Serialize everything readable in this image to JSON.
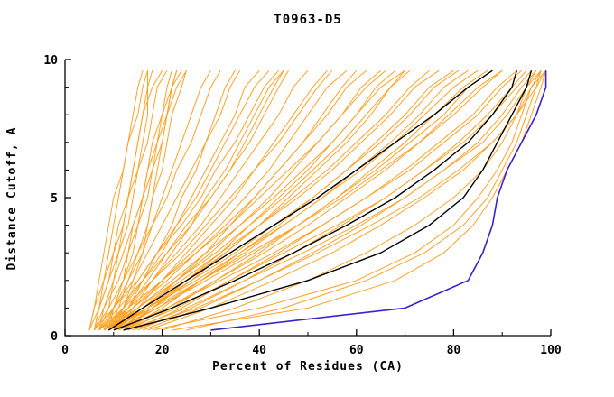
{
  "chart_data": {
    "type": "line",
    "title": "T0963-D5",
    "xlabel": "Percent of Residues (CA)",
    "ylabel": "Distance Cutoff, A",
    "xlim": [
      0,
      100
    ],
    "ylim": [
      0,
      10
    ],
    "x_ticks_major": [
      0,
      20,
      40,
      60,
      80,
      100
    ],
    "x_tick_minor_step": 10,
    "y_ticks_major": [
      0,
      5,
      10
    ],
    "y_tick_minor_step": 1,
    "grid": false,
    "legend": "none",
    "colors": {
      "ensemble": "#ffa226",
      "reference": "#000000",
      "highlight": "#4020cc",
      "axis": "#000000",
      "background": "#ffffff"
    },
    "cutoffs": [
      0.2,
      1,
      2,
      3,
      4,
      5,
      6,
      7,
      8,
      9,
      9.6
    ],
    "series_groups": [
      {
        "name": "ensemble-model",
        "color": "ensemble",
        "stroke_width": 1,
        "curves_x_percent": [
          [
            6,
            7,
            8,
            9,
            10,
            11,
            12,
            13,
            14,
            15,
            16
          ],
          [
            7,
            9,
            10,
            11,
            13,
            14,
            15,
            16,
            17,
            17,
            18
          ],
          [
            5,
            7,
            9,
            11,
            12,
            13,
            14,
            15,
            16,
            18,
            20
          ],
          [
            8,
            10,
            12,
            13,
            14,
            16,
            17,
            18,
            20,
            21,
            22
          ],
          [
            6,
            8,
            11,
            13,
            15,
            16,
            18,
            19,
            20,
            22,
            24
          ],
          [
            9,
            11,
            13,
            15,
            17,
            18,
            20,
            21,
            22,
            24,
            25
          ],
          [
            7,
            8,
            10,
            12,
            14,
            16,
            17,
            19,
            21,
            22,
            23
          ],
          [
            5,
            6,
            8,
            10,
            11,
            13,
            15,
            17,
            18,
            19,
            21
          ],
          [
            8,
            10,
            13,
            16,
            18,
            20,
            22,
            24,
            26,
            28,
            30
          ],
          [
            6,
            9,
            12,
            15,
            18,
            21,
            23,
            26,
            28,
            30,
            32
          ],
          [
            10,
            13,
            16,
            19,
            22,
            24,
            27,
            29,
            31,
            33,
            35
          ],
          [
            7,
            10,
            14,
            17,
            20,
            23,
            26,
            29,
            32,
            34,
            36
          ],
          [
            9,
            12,
            16,
            20,
            23,
            26,
            29,
            32,
            35,
            37,
            40
          ],
          [
            8,
            12,
            15,
            19,
            23,
            27,
            30,
            33,
            36,
            39,
            42
          ],
          [
            11,
            14,
            18,
            22,
            26,
            29,
            33,
            36,
            39,
            42,
            45
          ],
          [
            6,
            10,
            15,
            19,
            24,
            28,
            31,
            35,
            38,
            41,
            44
          ],
          [
            9,
            13,
            17,
            21,
            25,
            30,
            34,
            37,
            40,
            43,
            45
          ],
          [
            7,
            11,
            16,
            21,
            26,
            30,
            34,
            38,
            41,
            44,
            46
          ],
          [
            8,
            13,
            18,
            23,
            28,
            32,
            36,
            40,
            44,
            47,
            50
          ],
          [
            10,
            15,
            20,
            25,
            30,
            35,
            39,
            43,
            47,
            51,
            54
          ],
          [
            7,
            12,
            18,
            24,
            29,
            34,
            39,
            44,
            48,
            52,
            55
          ],
          [
            9,
            14,
            20,
            26,
            32,
            37,
            42,
            46,
            50,
            54,
            58
          ],
          [
            11,
            17,
            23,
            29,
            34,
            39,
            44,
            49,
            53,
            57,
            60
          ],
          [
            8,
            14,
            21,
            27,
            33,
            39,
            44,
            49,
            54,
            58,
            62
          ],
          [
            10,
            16,
            23,
            30,
            36,
            42,
            47,
            52,
            57,
            61,
            65
          ],
          [
            7,
            13,
            20,
            27,
            34,
            40,
            46,
            52,
            57,
            62,
            66
          ],
          [
            12,
            18,
            25,
            32,
            38,
            44,
            50,
            55,
            60,
            64,
            68
          ],
          [
            9,
            15,
            22,
            29,
            36,
            43,
            49,
            55,
            60,
            65,
            70
          ],
          [
            11,
            18,
            26,
            33,
            40,
            46,
            52,
            58,
            63,
            67,
            70
          ],
          [
            8,
            15,
            23,
            31,
            38,
            45,
            51,
            57,
            62,
            67,
            71
          ],
          [
            10,
            17,
            25,
            33,
            40,
            47,
            54,
            60,
            66,
            71,
            75
          ],
          [
            8,
            16,
            24,
            32,
            40,
            48,
            55,
            61,
            67,
            72,
            77
          ],
          [
            12,
            20,
            28,
            36,
            44,
            51,
            58,
            64,
            70,
            75,
            80
          ],
          [
            9,
            17,
            26,
            35,
            43,
            51,
            58,
            65,
            71,
            76,
            81
          ],
          [
            11,
            19,
            28,
            37,
            45,
            53,
            60,
            67,
            73,
            78,
            83
          ],
          [
            8,
            17,
            27,
            36,
            45,
            53,
            61,
            68,
            74,
            80,
            85
          ],
          [
            13,
            22,
            31,
            40,
            48,
            56,
            63,
            70,
            76,
            82,
            87
          ],
          [
            10,
            19,
            29,
            39,
            48,
            56,
            64,
            71,
            78,
            83,
            88
          ],
          [
            12,
            21,
            31,
            41,
            50,
            58,
            66,
            73,
            79,
            85,
            90
          ],
          [
            9,
            18,
            28,
            38,
            48,
            57,
            65,
            73,
            80,
            86,
            90
          ],
          [
            14,
            24,
            34,
            44,
            53,
            62,
            70,
            77,
            84,
            89,
            93
          ],
          [
            11,
            21,
            32,
            43,
            53,
            62,
            71,
            78,
            85,
            90,
            94
          ],
          [
            15,
            26,
            37,
            47,
            57,
            66,
            74,
            81,
            87,
            92,
            95
          ],
          [
            12,
            23,
            34,
            45,
            56,
            66,
            74,
            82,
            88,
            93,
            96
          ],
          [
            16,
            28,
            40,
            51,
            61,
            70,
            78,
            85,
            90,
            94,
            97
          ],
          [
            13,
            25,
            37,
            49,
            60,
            70,
            78,
            86,
            91,
            95,
            98
          ],
          [
            17,
            30,
            43,
            55,
            65,
            74,
            82,
            88,
            93,
            96,
            99
          ],
          [
            14,
            27,
            40,
            52,
            63,
            73,
            81,
            88,
            93,
            97,
            99
          ],
          [
            20,
            35,
            50,
            62,
            72,
            80,
            86,
            90,
            93,
            95,
            97
          ],
          [
            18,
            40,
            60,
            72,
            80,
            85,
            89,
            92,
            94,
            96,
            98
          ],
          [
            25,
            45,
            62,
            74,
            82,
            87,
            90,
            93,
            95,
            97,
            98
          ],
          [
            22,
            50,
            68,
            78,
            84,
            88,
            91,
            94,
            96,
            98,
            99
          ],
          [
            6,
            7,
            9,
            10,
            12,
            13,
            14,
            15,
            16,
            17,
            17
          ],
          [
            10,
            12,
            14,
            16,
            17,
            18,
            19,
            20,
            21,
            22,
            23
          ],
          [
            5,
            6,
            7,
            8,
            9,
            10,
            12,
            13,
            15,
            16,
            17
          ],
          [
            9,
            10,
            12,
            14,
            15,
            17,
            18,
            20,
            21,
            23,
            25
          ]
        ]
      },
      {
        "name": "reference-model",
        "color": "reference",
        "stroke_width": 1.4,
        "curves_x_percent": [
          [
            10,
            22,
            35,
            47,
            58,
            68,
            76,
            83,
            88,
            92,
            93
          ],
          [
            9,
            16,
            25,
            34,
            43,
            52,
            60,
            68,
            76,
            83,
            88
          ],
          [
            12,
            30,
            50,
            65,
            75,
            82,
            86,
            89,
            92,
            95,
            96
          ]
        ]
      },
      {
        "name": "highlighted-model",
        "color": "highlight",
        "stroke_width": 1.6,
        "curves_x_percent": [
          [
            30,
            70,
            83,
            86,
            88,
            89,
            91,
            94,
            97,
            99,
            99
          ]
        ]
      }
    ]
  }
}
